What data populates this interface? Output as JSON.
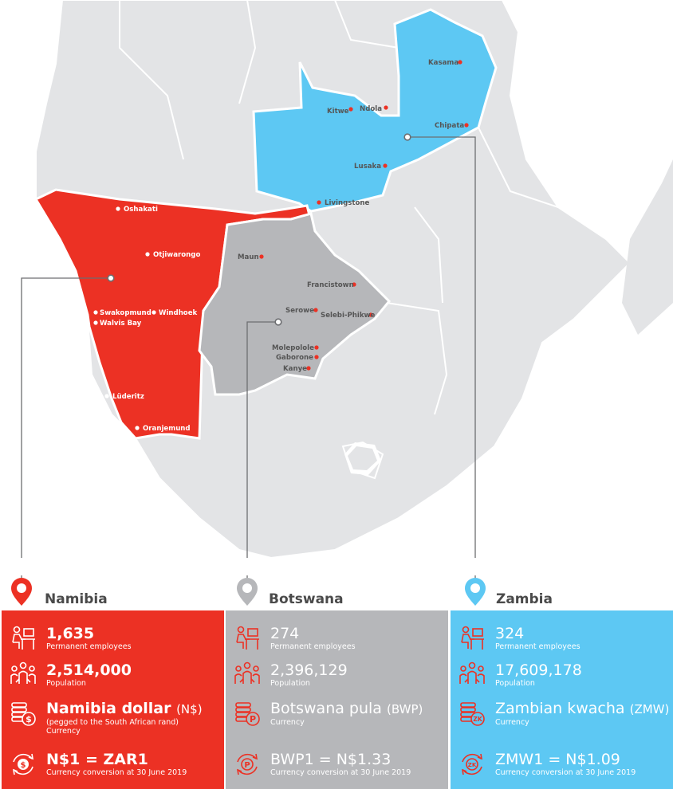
{
  "colors": {
    "namibia": "#ec3124",
    "botswana": "#b6b7ba",
    "zambia": "#5dc8f3",
    "land": "#e3e4e6",
    "sea": "#ffffff"
  },
  "map": {
    "namibia_cities": [
      {
        "name": "Oshakati"
      },
      {
        "name": "Otjiwarongo"
      },
      {
        "name": "Swakopmund"
      },
      {
        "name": "Windhoek"
      },
      {
        "name": "Walvis Bay"
      },
      {
        "name": "Lüderitz"
      },
      {
        "name": "Oranjemund"
      }
    ],
    "botswana_cities": [
      {
        "name": "Maun"
      },
      {
        "name": "Francistown"
      },
      {
        "name": "Serowe"
      },
      {
        "name": "Selebi-Phikwe"
      },
      {
        "name": "Molepolole"
      },
      {
        "name": "Gaborone"
      },
      {
        "name": "Kanye"
      }
    ],
    "zambia_cities": [
      {
        "name": "Kasama"
      },
      {
        "name": "Kitwe"
      },
      {
        "name": "Ndola"
      },
      {
        "name": "Chipata"
      },
      {
        "name": "Lusaka"
      },
      {
        "name": "Livingstone"
      }
    ]
  },
  "countries": [
    {
      "name": "Namibia",
      "employees": "1,635",
      "employees_label": "Permanent employees",
      "population": "2,514,000",
      "population_label": "Population",
      "currency": "Namibia dollar",
      "currency_code": "(N$)",
      "currency_note": "(pegged to the South African rand)",
      "currency_label": "Currency",
      "conversion": "N$1 = ZAR1",
      "conversion_label": "Currency conversion at 30 June 2019",
      "currency_icon": "dollar-coin-icon"
    },
    {
      "name": "Botswana",
      "employees": "274",
      "employees_label": "Permanent employees",
      "population": "2,396,129",
      "population_label": "Population",
      "currency": "Botswana pula",
      "currency_code": "(BWP)",
      "currency_label": "Currency",
      "conversion": "BWP1 = N$1.33",
      "conversion_label": "Currency conversion at 30 June 2019",
      "currency_icon": "pula-coin-icon"
    },
    {
      "name": "Zambia",
      "employees": "324",
      "employees_label": "Permanent employees",
      "population": "17,609,178",
      "population_label": "Population",
      "currency": "Zambian kwacha",
      "currency_code": "(ZMW)",
      "currency_label": "Currency",
      "conversion": "ZMW1 = N$1.09",
      "conversion_label": "Currency conversion at 30 June 2019",
      "currency_icon": "kwacha-coin-icon"
    }
  ],
  "icons": [
    "location-pin-icon",
    "desk-worker-icon",
    "people-group-icon",
    "coin-stack-icon",
    "currency-exchange-icon"
  ]
}
